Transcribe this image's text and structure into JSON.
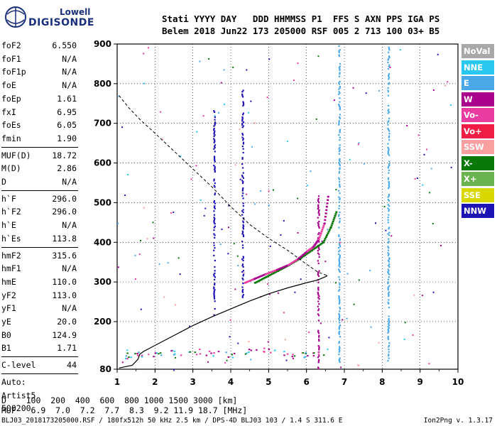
{
  "logo": {
    "line1": "Lowell",
    "line2": "DIGISONDE"
  },
  "header": {
    "line1": "Stati YYYY DAY   DDD HHMMSS P1  FFS S AXN PPS IGA PS",
    "line2": "Belem 2018 Jun22 173 205000 RSF 005 2 713 100 03+ B5"
  },
  "params": [
    {
      "label": "foF2",
      "value": "6.550"
    },
    {
      "label": "foF1",
      "value": "N/A"
    },
    {
      "label": "foF1p",
      "value": "N/A"
    },
    {
      "label": "foE",
      "value": "N/A"
    },
    {
      "label": "foEp",
      "value": "1.61"
    },
    {
      "label": "fxI",
      "value": "6.95"
    },
    {
      "label": "foEs",
      "value": "6.05"
    },
    {
      "label": "fmin",
      "value": "1.90"
    },
    {
      "label": "MUF(D)",
      "value": "18.72"
    },
    {
      "label": "M(D)",
      "value": "2.86"
    },
    {
      "label": "D",
      "value": "N/A"
    },
    {
      "label": "h`F",
      "value": "296.0"
    },
    {
      "label": "h`F2",
      "value": "296.0"
    },
    {
      "label": "h`E",
      "value": "N/A"
    },
    {
      "label": "h`Es",
      "value": "113.8"
    },
    {
      "label": "hmF2",
      "value": "315.6"
    },
    {
      "label": "hmF1",
      "value": "N/A"
    },
    {
      "label": "hmE",
      "value": "110.0"
    },
    {
      "label": "yF2",
      "value": "113.0"
    },
    {
      "label": "yF1",
      "value": "N/A"
    },
    {
      "label": "yE",
      "value": "20.0"
    },
    {
      "label": "B0",
      "value": "124.9"
    },
    {
      "label": "B1",
      "value": "1.71"
    },
    {
      "label": "C-level",
      "value": "44"
    },
    {
      "label": "Auto:",
      "value": ""
    },
    {
      "label": "Artist5",
      "value": ""
    },
    {
      "label": "500200",
      "value": ""
    }
  ],
  "legend": [
    {
      "label": "NoVal",
      "color": "#a8a8a8"
    },
    {
      "label": "NNE",
      "color": "#28c8f0"
    },
    {
      "label": "E",
      "color": "#4aa8e8"
    },
    {
      "label": "W",
      "color": "#a8008c"
    },
    {
      "label": "Vo-",
      "color": "#e83ca0"
    },
    {
      "label": "Vo+",
      "color": "#f01e46"
    },
    {
      "label": "SSW",
      "color": "#f8a0a0"
    },
    {
      "label": "X-",
      "color": "#087808"
    },
    {
      "label": "X+",
      "color": "#6ab450"
    },
    {
      "label": "SSE",
      "color": "#d8d800"
    },
    {
      "label": "NNW",
      "color": "#1e14b4"
    }
  ],
  "dtable": {
    "line1": "D    100  200  400  600  800 1000 1500 3000 [km]",
    "line2": "MUF   6.9  7.0  7.2  7.7  8.3  9.2 11.9 18.7 [MHz]"
  },
  "footer": {
    "left": "BLJ03_2018173205000.RSF / 180fx512h 50 kHz 2.5 km / DPS-4D BLJ03 103 / 1.4 S 311.6 E",
    "right": "Ion2Png v. 1.3.17"
  },
  "chart_data": {
    "type": "scatter",
    "xlim": [
      1,
      10
    ],
    "ylim": [
      80,
      900
    ],
    "x_ticks": [
      "1",
      "2",
      "3",
      "4",
      "5",
      "6",
      "7",
      "8",
      "9",
      "10"
    ],
    "y_ticks": [
      "80",
      "200",
      "300",
      "400",
      "500",
      "600",
      "700",
      "800",
      "900"
    ],
    "profile_solid": [
      [
        1.05,
        83
      ],
      [
        1.4,
        90
      ],
      [
        1.55,
        105
      ],
      [
        1.6,
        118
      ],
      [
        1.7,
        125
      ],
      [
        2.0,
        140
      ],
      [
        2.5,
        165
      ],
      [
        3.0,
        190
      ],
      [
        3.5,
        212
      ],
      [
        4.0,
        232
      ],
      [
        4.5,
        252
      ],
      [
        5.0,
        270
      ],
      [
        5.5,
        285
      ],
      [
        6.0,
        298
      ],
      [
        6.3,
        305
      ],
      [
        6.52,
        314
      ],
      [
        6.55,
        316
      ]
    ],
    "profile_dashed": [
      [
        1.05,
        770
      ],
      [
        1.3,
        740
      ],
      [
        1.6,
        710
      ],
      [
        2.0,
        675
      ],
      [
        2.5,
        630
      ],
      [
        3.0,
        585
      ],
      [
        3.5,
        540
      ],
      [
        4.0,
        490
      ],
      [
        4.5,
        445
      ],
      [
        5.0,
        410
      ],
      [
        5.5,
        380
      ],
      [
        6.0,
        345
      ],
      [
        6.3,
        325
      ],
      [
        6.55,
        316
      ]
    ],
    "trace_o": [
      [
        4.35,
        300
      ],
      [
        4.6,
        310
      ],
      [
        4.9,
        322
      ],
      [
        5.2,
        333
      ],
      [
        5.5,
        345
      ],
      [
        5.75,
        360
      ],
      [
        6.0,
        380
      ],
      [
        6.15,
        390
      ],
      [
        6.3,
        410
      ],
      [
        6.45,
        450
      ],
      [
        6.55,
        520
      ]
    ],
    "trace_x": [
      [
        4.6,
        300
      ],
      [
        4.9,
        315
      ],
      [
        5.2,
        330
      ],
      [
        5.5,
        345
      ],
      [
        5.8,
        362
      ],
      [
        6.1,
        382
      ],
      [
        6.4,
        402
      ],
      [
        6.6,
        440
      ],
      [
        6.75,
        480
      ]
    ],
    "e_echoes": [
      [
        1.2,
        115
      ],
      [
        1.6,
        118
      ],
      [
        2.0,
        120
      ],
      [
        2.5,
        123
      ],
      [
        3.0,
        125
      ],
      [
        3.5,
        122
      ],
      [
        4.0,
        118
      ],
      [
        4.5,
        125
      ],
      [
        5.0,
        128
      ],
      [
        5.5,
        120
      ],
      [
        6.0,
        118
      ],
      [
        6.3,
        120
      ]
    ],
    "vertical_strips": [
      {
        "x": 3.55,
        "y0": 215,
        "y1": 735,
        "series": "NNW"
      },
      {
        "x": 4.3,
        "y0": 260,
        "y1": 785,
        "series": "NNW"
      },
      {
        "x": 6.3,
        "y0": 80,
        "y1": 520,
        "series": "W"
      },
      {
        "x": 6.85,
        "y0": 100,
        "y1": 900,
        "series": "E"
      },
      {
        "x": 8.15,
        "y0": 100,
        "y1": 900,
        "series": "E"
      }
    ]
  }
}
